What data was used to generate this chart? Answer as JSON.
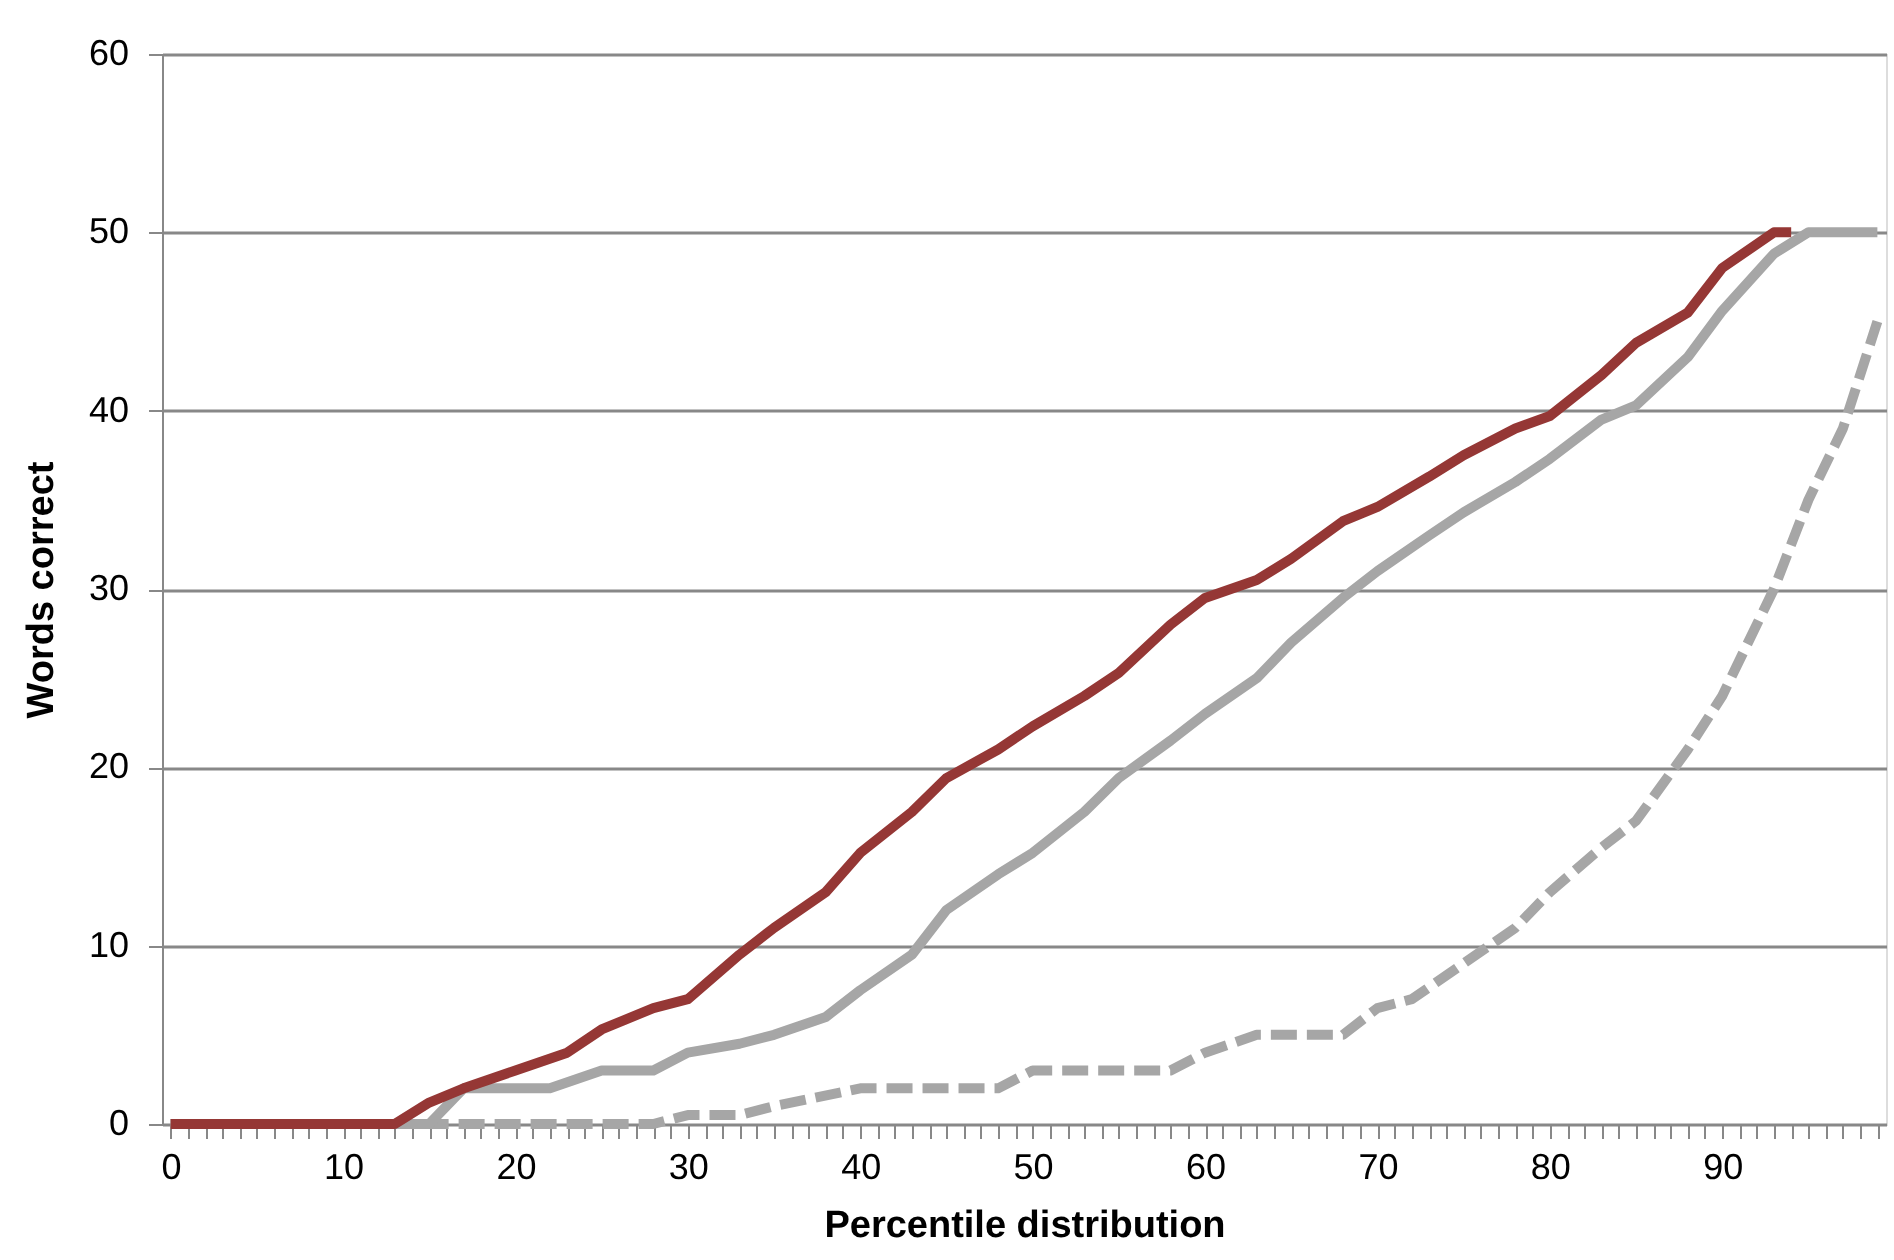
{
  "chart_data": {
    "type": "line",
    "xlabel": "Percentile distribution",
    "ylabel": "Words correct",
    "xlim": [
      -0.5,
      99.5
    ],
    "ylim": [
      0,
      60
    ],
    "yticks": [
      0,
      10,
      20,
      30,
      40,
      50,
      60
    ],
    "xticks": [
      0,
      {
        "value": 1,
        "label": null
      },
      {
        "value": 2,
        "label": null
      },
      {
        "value": 3,
        "label": null
      },
      {
        "value": 4,
        "label": null
      },
      {
        "value": 5,
        "label": null
      },
      {
        "value": 6,
        "label": null
      },
      {
        "value": 7,
        "label": null
      },
      {
        "value": 8,
        "label": null
      },
      {
        "value": 9,
        "label": null
      },
      10,
      {
        "value": 11,
        "label": null
      },
      {
        "value": 12,
        "label": null
      },
      {
        "value": 13,
        "label": null
      },
      {
        "value": 14,
        "label": null
      },
      {
        "value": 15,
        "label": null
      },
      {
        "value": 16,
        "label": null
      },
      {
        "value": 17,
        "label": null
      },
      {
        "value": 18,
        "label": null
      },
      {
        "value": 19,
        "label": null
      },
      20,
      {
        "value": 21,
        "label": null
      },
      {
        "value": 22,
        "label": null
      },
      {
        "value": 23,
        "label": null
      },
      {
        "value": 24,
        "label": null
      },
      {
        "value": 25,
        "label": null
      },
      {
        "value": 26,
        "label": null
      },
      {
        "value": 27,
        "label": null
      },
      {
        "value": 28,
        "label": null
      },
      {
        "value": 29,
        "label": null
      },
      30,
      {
        "value": 31,
        "label": null
      },
      {
        "value": 32,
        "label": null
      },
      {
        "value": 33,
        "label": null
      },
      {
        "value": 34,
        "label": null
      },
      {
        "value": 35,
        "label": null
      },
      {
        "value": 36,
        "label": null
      },
      {
        "value": 37,
        "label": null
      },
      {
        "value": 38,
        "label": null
      },
      {
        "value": 39,
        "label": null
      },
      40,
      {
        "value": 41,
        "label": null
      },
      {
        "value": 42,
        "label": null
      },
      {
        "value": 43,
        "label": null
      },
      {
        "value": 44,
        "label": null
      },
      {
        "value": 45,
        "label": null
      },
      {
        "value": 46,
        "label": null
      },
      {
        "value": 47,
        "label": null
      },
      {
        "value": 48,
        "label": null
      },
      {
        "value": 49,
        "label": null
      },
      50,
      {
        "value": 51,
        "label": null
      },
      {
        "value": 52,
        "label": null
      },
      {
        "value": 53,
        "label": null
      },
      {
        "value": 54,
        "label": null
      },
      {
        "value": 55,
        "label": null
      },
      {
        "value": 56,
        "label": null
      },
      {
        "value": 57,
        "label": null
      },
      {
        "value": 58,
        "label": null
      },
      {
        "value": 59,
        "label": null
      },
      60,
      {
        "value": 61,
        "label": null
      },
      {
        "value": 62,
        "label": null
      },
      {
        "value": 63,
        "label": null
      },
      {
        "value": 64,
        "label": null
      },
      {
        "value": 65,
        "label": null
      },
      {
        "value": 66,
        "label": null
      },
      {
        "value": 67,
        "label": null
      },
      {
        "value": 68,
        "label": null
      },
      {
        "value": 69,
        "label": null
      },
      70,
      {
        "value": 71,
        "label": null
      },
      {
        "value": 72,
        "label": null
      },
      {
        "value": 73,
        "label": null
      },
      {
        "value": 74,
        "label": null
      },
      {
        "value": 75,
        "label": null
      },
      {
        "value": 76,
        "label": null
      },
      {
        "value": 77,
        "label": null
      },
      {
        "value": 78,
        "label": null
      },
      {
        "value": 79,
        "label": null
      },
      80,
      {
        "value": 81,
        "label": null
      },
      {
        "value": 82,
        "label": null
      },
      {
        "value": 83,
        "label": null
      },
      {
        "value": 84,
        "label": null
      },
      {
        "value": 85,
        "label": null
      },
      {
        "value": 86,
        "label": null
      },
      {
        "value": 87,
        "label": null
      },
      {
        "value": 88,
        "label": null
      },
      {
        "value": 89,
        "label": null
      },
      90,
      {
        "value": 91,
        "label": null
      },
      {
        "value": 92,
        "label": null
      },
      {
        "value": 93,
        "label": null
      },
      {
        "value": 94,
        "label": null
      },
      {
        "value": 95,
        "label": null
      },
      {
        "value": 96,
        "label": null
      },
      {
        "value": 97,
        "label": null
      },
      {
        "value": 98,
        "label": null
      },
      {
        "value": 99,
        "label": null
      }
    ],
    "grid": "y",
    "marker": "none",
    "legend": false,
    "series": [
      {
        "color": "#a6a6a6",
        "line_style": "dashed",
        "x": [
          0,
          10,
          20,
          28,
          30,
          33,
          35,
          40,
          45,
          48,
          50,
          55,
          58,
          60,
          63,
          65,
          68,
          70,
          72,
          75,
          78,
          80,
          83,
          85,
          88,
          90,
          93,
          95,
          97,
          99
        ],
        "values": [
          0,
          0,
          0,
          0,
          0.5,
          0.5,
          1,
          2,
          2,
          2,
          3,
          3,
          3,
          4,
          5,
          5,
          5,
          6.5,
          7,
          9,
          11,
          13,
          15.5,
          17,
          21,
          24,
          30,
          35,
          39,
          45
        ]
      },
      {
        "color": "#a6a6a6",
        "line_style": "solid",
        "x": [
          0,
          10,
          15,
          17,
          20,
          22,
          25,
          28,
          30,
          33,
          35,
          38,
          40,
          43,
          45,
          48,
          50,
          53,
          55,
          58,
          60,
          63,
          65,
          68,
          70,
          73,
          75,
          78,
          80,
          83,
          85,
          88,
          90,
          93,
          95,
          99
        ],
        "values": [
          0,
          0,
          0,
          2,
          2,
          2,
          3,
          3,
          4,
          4.5,
          5,
          6,
          7.5,
          9.5,
          12,
          14,
          15.2,
          17.5,
          19.4,
          21.5,
          23,
          25,
          27,
          29.5,
          31,
          33,
          34.3,
          36,
          37.3,
          39.5,
          40.3,
          43,
          45.6,
          48.8,
          50,
          50
        ]
      },
      {
        "color": "#953735",
        "line_style": "solid",
        "x": [
          0,
          10,
          13,
          15,
          17,
          20,
          23,
          25,
          28,
          30,
          33,
          35,
          38,
          40,
          43,
          45,
          48,
          50,
          53,
          55,
          58,
          60,
          63,
          65,
          68,
          70,
          73,
          75,
          78,
          80,
          83,
          85,
          88,
          90,
          93,
          94
        ],
        "values": [
          0,
          0,
          0,
          1.2,
          2,
          3,
          4,
          5.3,
          6.5,
          7,
          9.5,
          11,
          13,
          15.2,
          17.5,
          19.4,
          21,
          22.3,
          24,
          25.3,
          28,
          29.5,
          30.5,
          31.7,
          33.8,
          34.6,
          36.3,
          37.5,
          39,
          39.7,
          42,
          43.8,
          45.5,
          48,
          50,
          50
        ]
      }
    ]
  }
}
